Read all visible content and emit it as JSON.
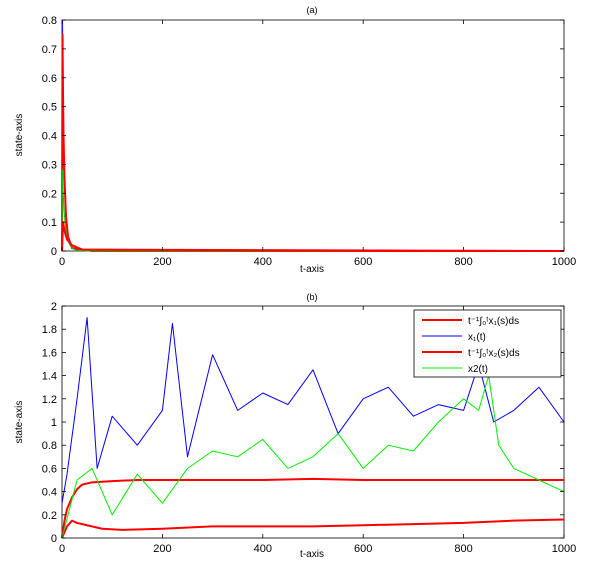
{
  "chart_data": [
    {
      "type": "line",
      "title": "(a)",
      "xlabel": "t-axis",
      "ylabel": "state-axis",
      "xlim": [
        0,
        1000
      ],
      "ylim": [
        0,
        0.8
      ],
      "xticks": [
        "0",
        "200",
        "400",
        "600",
        "800",
        "1000"
      ],
      "yticks": [
        "0",
        "0.1",
        "0.2",
        "0.3",
        "0.4",
        "0.5",
        "0.6",
        "0.7",
        "0.8"
      ],
      "series": [
        {
          "color": "#1a1aff",
          "x": [
            0,
            1,
            2,
            3,
            4,
            6,
            8,
            10,
            13,
            16,
            20,
            30,
            60,
            1000
          ],
          "y": [
            0.0,
            0.8,
            0.6,
            0.45,
            0.32,
            0.2,
            0.13,
            0.08,
            0.04,
            0.02,
            0.01,
            0.003,
            0.0,
            0.0
          ]
        },
        {
          "color": "#ff0000",
          "x": [
            0,
            1,
            2,
            3,
            5,
            8,
            12,
            20,
            60,
            1000
          ],
          "y": [
            0.0,
            0.75,
            0.55,
            0.4,
            0.25,
            0.12,
            0.05,
            0.01,
            0.0,
            0.0
          ]
        },
        {
          "color": "#00cc00",
          "x": [
            0,
            1,
            2,
            3,
            4,
            6,
            8,
            10,
            13,
            16,
            20,
            30,
            60,
            1000
          ],
          "y": [
            0.0,
            0.28,
            0.22,
            0.18,
            0.14,
            0.1,
            0.07,
            0.05,
            0.03,
            0.02,
            0.01,
            0.002,
            0.0,
            0.0
          ]
        },
        {
          "color": "#ff0000",
          "x": [
            0,
            2,
            5,
            10,
            20,
            40,
            1000
          ],
          "y": [
            0.0,
            0.1,
            0.07,
            0.04,
            0.02,
            0.005,
            0.0
          ]
        }
      ]
    },
    {
      "type": "line",
      "title": "(b)",
      "xlabel": "t-axis",
      "ylabel": "state-axis",
      "xlim": [
        0,
        1000
      ],
      "ylim": [
        0,
        2
      ],
      "xticks": [
        "0",
        "200",
        "400",
        "600",
        "800",
        "1000"
      ],
      "yticks": [
        "0",
        "0.2",
        "0.4",
        "0.6",
        "0.8",
        "1",
        "1.2",
        "1.4",
        "1.6",
        "1.8",
        "2"
      ],
      "legend_position": "top-right",
      "series": [
        {
          "name": "t⁻¹∫₀ᵗx₁(s)ds",
          "color": "#ff0000",
          "x": [
            0,
            5,
            10,
            20,
            30,
            40,
            60,
            100,
            150,
            200,
            300,
            400,
            500,
            600,
            700,
            800,
            900,
            1000
          ],
          "y": [
            0.0,
            0.15,
            0.25,
            0.35,
            0.42,
            0.46,
            0.48,
            0.49,
            0.5,
            0.5,
            0.5,
            0.5,
            0.51,
            0.5,
            0.5,
            0.5,
            0.5,
            0.5
          ]
        },
        {
          "name": "x₁(t)",
          "color": "#0000ff",
          "x": [
            0,
            10,
            30,
            50,
            70,
            100,
            150,
            200,
            220,
            250,
            300,
            350,
            400,
            450,
            500,
            550,
            600,
            650,
            700,
            750,
            800,
            830,
            860,
            900,
            950,
            1000
          ],
          "y": [
            0.3,
            0.55,
            1.2,
            1.9,
            0.6,
            1.05,
            0.8,
            1.1,
            1.85,
            0.7,
            1.58,
            1.1,
            1.25,
            1.15,
            1.45,
            0.9,
            1.2,
            1.3,
            1.05,
            1.15,
            1.1,
            1.5,
            1.0,
            1.1,
            1.3,
            1.0
          ]
        },
        {
          "name": "t⁻¹∫₀ᵗx₂(s)ds",
          "color": "#ff0000",
          "x": [
            0,
            10,
            20,
            30,
            50,
            80,
            120,
            200,
            300,
            400,
            500,
            600,
            700,
            800,
            900,
            1000
          ],
          "y": [
            0.0,
            0.1,
            0.15,
            0.13,
            0.11,
            0.08,
            0.07,
            0.08,
            0.1,
            0.1,
            0.1,
            0.11,
            0.12,
            0.13,
            0.15,
            0.16
          ]
        },
        {
          "name": "x2(t)",
          "color": "#00ee00",
          "x": [
            0,
            30,
            60,
            100,
            150,
            200,
            250,
            300,
            350,
            400,
            450,
            500,
            550,
            600,
            650,
            700,
            750,
            800,
            830,
            850,
            870,
            900,
            950,
            1000
          ],
          "y": [
            0.0,
            0.5,
            0.6,
            0.2,
            0.55,
            0.3,
            0.6,
            0.75,
            0.7,
            0.85,
            0.6,
            0.7,
            0.9,
            0.6,
            0.8,
            0.75,
            1.0,
            1.2,
            1.1,
            1.4,
            0.8,
            0.6,
            0.5,
            0.4
          ]
        }
      ]
    }
  ]
}
